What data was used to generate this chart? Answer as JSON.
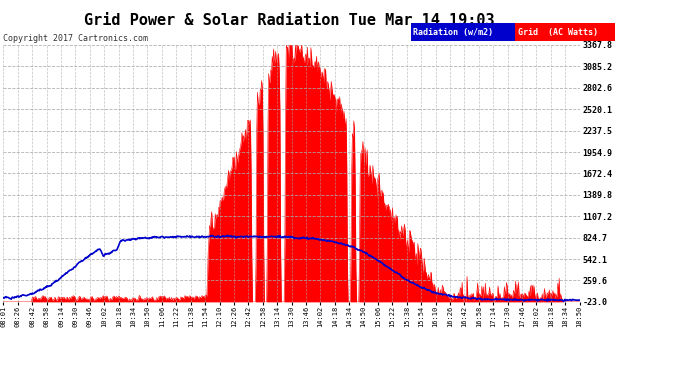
{
  "title": "Grid Power & Solar Radiation Tue Mar 14 19:03",
  "copyright": "Copyright 2017 Cartronics.com",
  "yticks": [
    -23.0,
    259.6,
    542.1,
    824.7,
    1107.2,
    1389.8,
    1672.4,
    1954.9,
    2237.5,
    2520.1,
    2802.6,
    3085.2,
    3367.8
  ],
  "ymin": -23.0,
  "ymax": 3367.8,
  "bg_color": "#ffffff",
  "plot_bg_color": "#ffffff",
  "grid_color": "#aaaaaa",
  "title_color": "#000000",
  "legend_radiation_bg": "#0000cc",
  "legend_radiation_text": "Radiation (w/m2)",
  "legend_grid_bg": "#ff0000",
  "legend_grid_text": "Grid  (AC Watts)",
  "radiation_color": "#0000cc",
  "grid_power_color": "#ff0000",
  "tick_color": "#000000",
  "x_labels": [
    "08:01",
    "08:26",
    "08:42",
    "08:58",
    "09:14",
    "09:30",
    "09:46",
    "10:02",
    "10:18",
    "10:34",
    "10:50",
    "11:06",
    "11:22",
    "11:38",
    "11:54",
    "12:10",
    "12:26",
    "12:42",
    "12:58",
    "13:14",
    "13:30",
    "13:46",
    "14:02",
    "14:18",
    "14:34",
    "14:50",
    "15:06",
    "15:22",
    "15:38",
    "15:54",
    "16:10",
    "16:26",
    "16:42",
    "16:58",
    "17:14",
    "17:30",
    "17:46",
    "18:02",
    "18:18",
    "18:34",
    "18:50"
  ]
}
